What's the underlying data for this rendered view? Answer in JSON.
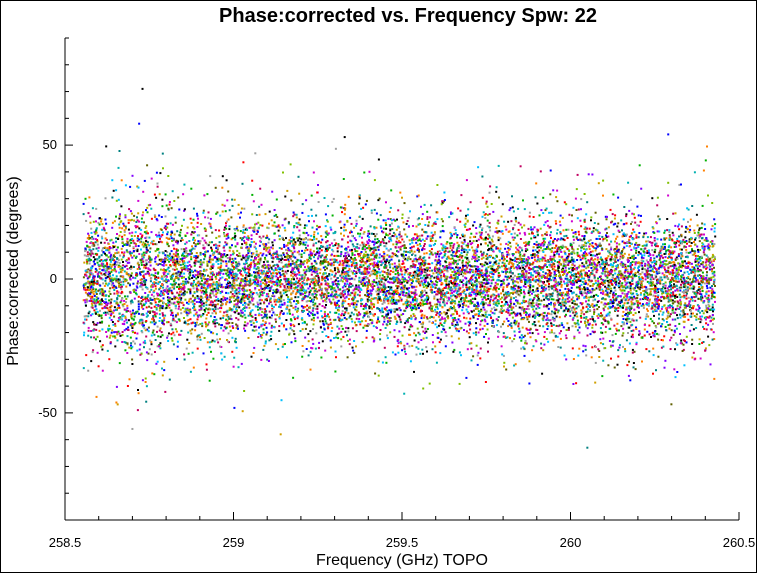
{
  "chart_data": {
    "type": "scatter",
    "title": "Phase:corrected vs. Frequency Spw: 22",
    "xlabel": "Frequency (GHz) TOPO",
    "ylabel": "Phase:corrected (degrees)",
    "xlim": [
      258.5,
      260.5
    ],
    "ylim": [
      -90,
      90
    ],
    "x_ticks": [
      258.5,
      259,
      259.5,
      260,
      260.5
    ],
    "x_tick_labels": [
      "258.5",
      "259",
      "259.5",
      "260",
      "260.5"
    ],
    "x_minor_step": 0.1,
    "y_ticks": [
      -50,
      0,
      50
    ],
    "y_tick_labels": [
      "-50",
      "0",
      "50"
    ],
    "y_minor_step": 10,
    "data_x_range": [
      258.555,
      260.43
    ],
    "core_spread_degrees": 11,
    "outer_spread_degrees": 28,
    "extreme_points": [
      {
        "x": 258.73,
        "y": 71
      },
      {
        "x": 258.72,
        "y": 58
      },
      {
        "x": 259.14,
        "y": -58
      },
      {
        "x": 260.05,
        "y": -63
      },
      {
        "x": 258.7,
        "y": -56
      },
      {
        "x": 259.33,
        "y": 53
      },
      {
        "x": 260.29,
        "y": 54
      }
    ],
    "series_colors": [
      "#000000",
      "#ff0000",
      "#00b000",
      "#0000ff",
      "#00b0b0",
      "#d000d0",
      "#d0a000",
      "#8000ff",
      "#ff8000",
      "#008080",
      "#80c000",
      "#c00060",
      "#a0a0a0",
      "#00c0ff",
      "#606000"
    ]
  }
}
